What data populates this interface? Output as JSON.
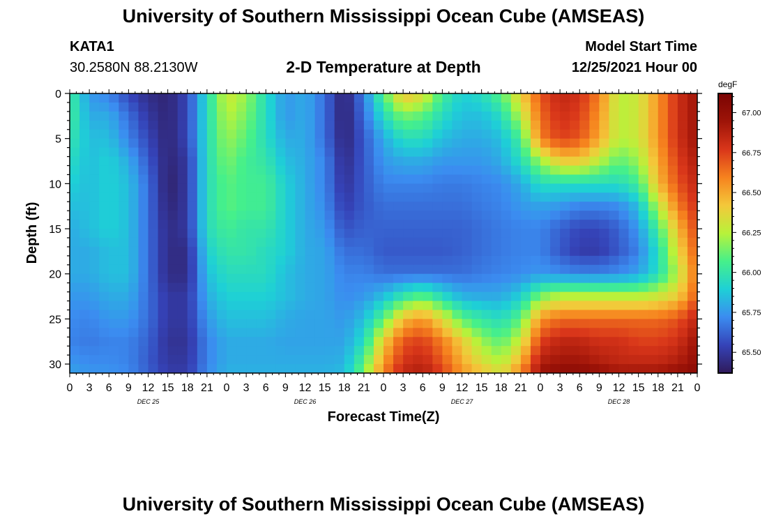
{
  "header": {
    "title": "University of Southern Mississippi Ocean Cube (AMSEAS)",
    "station": "KATA1",
    "coords": "30.2580N  88.2130W",
    "plot_title": "2-D Temperature at Depth",
    "start_label": "Model Start Time",
    "start_value": "12/25/2021 Hour 00"
  },
  "footer": {
    "title": "University of Southern Mississippi Ocean Cube (AMSEAS)"
  },
  "chart_data": {
    "type": "heatmap",
    "title": "2-D Temperature at Depth",
    "xlabel": "Forecast Time(Z)",
    "ylabel": "Depth (ft)",
    "x_tick_labels": [
      "0",
      "3",
      "6",
      "9",
      "12",
      "15",
      "18",
      "21",
      "0",
      "3",
      "6",
      "9",
      "12",
      "15",
      "18",
      "21",
      "0",
      "3",
      "6",
      "9",
      "12",
      "15",
      "18",
      "21",
      "0",
      "3",
      "6",
      "9",
      "12",
      "15",
      "18",
      "21",
      "0"
    ],
    "x_day_labels": [
      "DEC 25",
      "DEC 26",
      "DEC 27",
      "DEC 28"
    ],
    "xlim_hours": [
      0,
      96
    ],
    "y_ticks": [
      0,
      5,
      10,
      15,
      20,
      25,
      30
    ],
    "ylim": [
      0,
      31
    ],
    "y_inverted": true,
    "colorbar": {
      "unit": "degF",
      "ticks": [
        "67.00",
        "66.75",
        "66.50",
        "66.25",
        "66.00",
        "65.75",
        "65.50"
      ],
      "range": [
        65.37,
        67.12
      ],
      "colors": [
        "#2f1a5a",
        "#3543b8",
        "#3b8cf0",
        "#1ed0d6",
        "#46f08a",
        "#b8f23a",
        "#f4c83a",
        "#f6821e",
        "#d9361a",
        "#9e1408",
        "#7a0403"
      ]
    },
    "depths": [
      0,
      2.5,
      5,
      7.5,
      10,
      12.5,
      15,
      17.5,
      20,
      22.5,
      25,
      27.5,
      30,
      31
    ],
    "times": [
      0,
      3,
      6,
      9,
      12,
      15,
      18,
      21,
      24,
      27,
      30,
      33,
      36,
      39,
      42,
      45,
      48,
      51,
      54,
      57,
      60,
      63,
      66,
      69,
      72,
      75,
      78,
      81,
      84,
      87,
      90,
      93,
      96
    ],
    "values": [
      [
        66.05,
        65.75,
        65.7,
        65.55,
        65.45,
        65.42,
        65.55,
        65.95,
        66.3,
        66.2,
        65.95,
        65.75,
        65.8,
        65.65,
        65.4,
        65.7,
        66.1,
        66.45,
        66.35,
        66.05,
        65.9,
        65.95,
        66.1,
        66.4,
        66.7,
        66.85,
        66.8,
        66.6,
        66.25,
        66.3,
        66.55,
        66.8,
        66.95
      ],
      [
        66.05,
        65.8,
        65.8,
        65.65,
        65.5,
        65.42,
        65.55,
        65.95,
        66.25,
        66.15,
        65.95,
        65.75,
        65.8,
        65.65,
        65.4,
        65.65,
        65.95,
        66.15,
        66.1,
        65.95,
        65.85,
        65.85,
        65.95,
        66.25,
        66.65,
        66.8,
        66.75,
        66.55,
        66.25,
        66.3,
        66.55,
        66.8,
        66.95
      ],
      [
        66.0,
        65.85,
        65.85,
        65.7,
        65.55,
        65.42,
        65.55,
        65.95,
        66.2,
        66.1,
        65.95,
        65.8,
        65.8,
        65.65,
        65.42,
        65.6,
        65.8,
        65.95,
        65.95,
        65.85,
        65.8,
        65.8,
        65.85,
        66.05,
        66.6,
        66.75,
        66.7,
        66.5,
        66.25,
        66.3,
        66.55,
        66.8,
        66.95
      ],
      [
        65.95,
        65.85,
        65.9,
        65.8,
        65.6,
        65.42,
        65.5,
        65.95,
        66.15,
        66.05,
        66.0,
        65.85,
        65.8,
        65.7,
        65.45,
        65.6,
        65.75,
        65.8,
        65.8,
        65.75,
        65.75,
        65.75,
        65.8,
        65.95,
        66.2,
        66.4,
        66.4,
        66.25,
        66.1,
        66.2,
        66.5,
        66.75,
        66.9
      ],
      [
        65.9,
        65.85,
        65.9,
        65.85,
        65.65,
        65.4,
        65.5,
        65.95,
        66.1,
        66.05,
        66.05,
        65.9,
        65.8,
        65.7,
        65.48,
        65.6,
        65.7,
        65.7,
        65.7,
        65.68,
        65.68,
        65.7,
        65.72,
        65.8,
        65.95,
        65.95,
        65.95,
        65.95,
        65.95,
        66.05,
        66.45,
        66.7,
        66.85
      ],
      [
        65.85,
        65.85,
        65.9,
        65.85,
        65.65,
        65.42,
        65.5,
        65.95,
        66.1,
        66.05,
        66.05,
        65.9,
        65.8,
        65.72,
        65.52,
        65.6,
        65.65,
        65.65,
        65.65,
        65.65,
        65.65,
        65.68,
        65.7,
        65.75,
        65.78,
        65.75,
        65.7,
        65.7,
        65.72,
        65.85,
        66.25,
        66.6,
        66.8
      ],
      [
        65.8,
        65.85,
        65.9,
        65.85,
        65.65,
        65.45,
        65.5,
        65.95,
        66.05,
        66.0,
        66.0,
        65.9,
        65.8,
        65.75,
        65.58,
        65.62,
        65.62,
        65.62,
        65.62,
        65.62,
        65.62,
        65.65,
        65.68,
        65.7,
        65.7,
        65.62,
        65.55,
        65.55,
        65.62,
        65.75,
        66.05,
        66.45,
        66.75
      ],
      [
        65.8,
        65.8,
        65.85,
        65.85,
        65.65,
        65.45,
        65.45,
        65.9,
        66.0,
        66.0,
        65.95,
        65.9,
        65.8,
        65.78,
        65.65,
        65.65,
        65.6,
        65.6,
        65.6,
        65.6,
        65.62,
        65.65,
        65.68,
        65.7,
        65.7,
        65.6,
        65.52,
        65.52,
        65.6,
        65.7,
        65.95,
        66.35,
        66.7
      ],
      [
        65.8,
        65.8,
        65.85,
        65.85,
        65.65,
        65.45,
        65.45,
        65.85,
        65.95,
        65.95,
        65.95,
        65.85,
        65.8,
        65.78,
        65.7,
        65.7,
        65.65,
        65.65,
        65.65,
        65.65,
        65.65,
        65.68,
        65.7,
        65.72,
        65.75,
        65.72,
        65.7,
        65.7,
        65.72,
        65.78,
        65.95,
        66.25,
        66.65
      ],
      [
        65.75,
        65.75,
        65.8,
        65.8,
        65.65,
        65.5,
        65.5,
        65.8,
        65.9,
        65.9,
        65.9,
        65.85,
        65.8,
        65.78,
        65.72,
        65.75,
        65.85,
        66.0,
        66.1,
        65.95,
        65.82,
        65.8,
        65.8,
        65.9,
        66.15,
        66.25,
        66.25,
        66.25,
        66.25,
        66.25,
        66.3,
        66.4,
        66.7
      ],
      [
        65.72,
        65.7,
        65.75,
        65.75,
        65.65,
        65.5,
        65.5,
        65.75,
        65.85,
        65.85,
        65.85,
        65.8,
        65.78,
        65.78,
        65.75,
        65.85,
        66.1,
        66.45,
        66.55,
        66.35,
        66.1,
        66.0,
        65.95,
        66.1,
        66.55,
        66.65,
        66.65,
        66.65,
        66.65,
        66.65,
        66.65,
        66.7,
        66.85
      ],
      [
        65.7,
        65.68,
        65.7,
        65.7,
        65.62,
        65.48,
        65.48,
        65.7,
        65.8,
        65.8,
        65.8,
        65.78,
        65.78,
        65.78,
        65.78,
        65.95,
        66.4,
        66.7,
        66.75,
        66.6,
        66.4,
        66.2,
        66.1,
        66.3,
        66.75,
        66.85,
        66.85,
        66.8,
        66.8,
        66.75,
        66.75,
        66.8,
        66.95
      ],
      [
        65.75,
        65.72,
        65.72,
        65.7,
        65.6,
        65.5,
        65.5,
        65.7,
        65.8,
        65.8,
        65.8,
        65.8,
        65.8,
        65.8,
        65.82,
        66.1,
        66.55,
        66.8,
        66.85,
        66.7,
        66.5,
        66.35,
        66.25,
        66.5,
        66.9,
        66.95,
        66.95,
        66.9,
        66.85,
        66.85,
        66.85,
        66.9,
        67.0
      ],
      [
        65.78,
        65.75,
        65.75,
        65.72,
        65.62,
        65.52,
        65.52,
        65.72,
        65.82,
        65.82,
        65.82,
        65.82,
        65.82,
        65.82,
        65.85,
        66.15,
        66.6,
        66.85,
        66.9,
        66.75,
        66.55,
        66.45,
        66.35,
        66.6,
        66.95,
        67.05,
        67.05,
        67.0,
        66.95,
        66.95,
        66.95,
        67.0,
        67.05
      ]
    ]
  }
}
